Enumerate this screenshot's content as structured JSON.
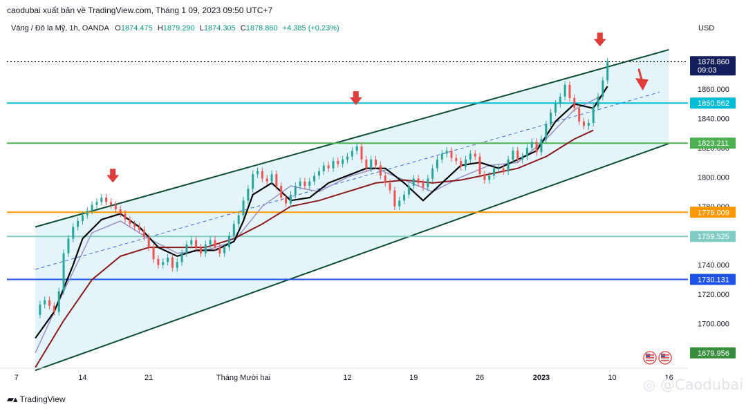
{
  "header": {
    "publisher": "caodubai xuất bản về TradingView.com, Tháng 1 09, 2023 09:50 UTC+7"
  },
  "ohlc": {
    "symbol": "Vàng / Đô la Mỹ, 1h, OANDA",
    "open_label": "O",
    "open": "1874.475",
    "high_label": "H",
    "high": "1879.290",
    "low_label": "L",
    "low": "1874.305",
    "close_label": "C",
    "close": "1878.860",
    "change": "+4.385 (+0.23%)"
  },
  "currency": "USD",
  "footer": {
    "brand": "TradingView"
  },
  "watermark": "@Caodubai",
  "chart_data": {
    "type": "line",
    "ylim": [
      1670,
      1895
    ],
    "y_ticks": [
      1700,
      1720,
      1740,
      1760,
      1780,
      1800,
      1820,
      1840,
      1860,
      1880
    ],
    "y_tick_labels": [
      "1700.000",
      "1720.000",
      "1740.000",
      "",
      "1780.000",
      "1800.000",
      "1820.000",
      "1840.000",
      "1860.000",
      ""
    ],
    "x_ticks": [
      {
        "label": "7",
        "t": 7
      },
      {
        "label": "14",
        "t": 14
      },
      {
        "label": "21",
        "t": 21
      },
      {
        "label": "Tháng Mười hai",
        "t": 31
      },
      {
        "label": "12",
        "t": 42
      },
      {
        "label": "19",
        "t": 49
      },
      {
        "label": "26",
        "t": 56
      },
      {
        "label": "2023",
        "t": 62.5
      },
      {
        "label": "10",
        "t": 70
      },
      {
        "label": "16",
        "t": 76
      }
    ],
    "price_series": {
      "name": "",
      "x": [
        9,
        9.5,
        10,
        10.5,
        11,
        11.5,
        12,
        12.5,
        13,
        13.5,
        14,
        14.5,
        15,
        15.5,
        16,
        16.5,
        17,
        17.5,
        18,
        18.5,
        19,
        19.5,
        20,
        20.5,
        21,
        21.5,
        22,
        22.5,
        23,
        23.5,
        24,
        24.5,
        25,
        25.5,
        26,
        26.5,
        27,
        27.5,
        28,
        28.5,
        29,
        29.5,
        30,
        30.5,
        31,
        31.5,
        32,
        32.5,
        33,
        33.5,
        34,
        34.5,
        35,
        35.5,
        36,
        36.5,
        37,
        37.5,
        38,
        38.5,
        39,
        39.5,
        40,
        40.5,
        41,
        41.5,
        42,
        42.5,
        43,
        43.5,
        44,
        44.5,
        45,
        45.5,
        46,
        46.5,
        47,
        47.5,
        48,
        48.5,
        49,
        49.5,
        50,
        50.5,
        51,
        51.5,
        52,
        52.5,
        53,
        53.5,
        54,
        54.5,
        55,
        55.5,
        56,
        56.5,
        57,
        57.5,
        58,
        58.5,
        59,
        59.5,
        60,
        60.5,
        61,
        61.5,
        62,
        62.5,
        63,
        63.5,
        64,
        64.5,
        65,
        65.5,
        66,
        66.5,
        67,
        67.5,
        68,
        68.5,
        69,
        69.5
      ],
      "values": [
        1706,
        1713,
        1716,
        1712,
        1708,
        1722,
        1748,
        1758,
        1766,
        1770,
        1774,
        1777,
        1781,
        1783,
        1786,
        1783,
        1781,
        1778,
        1775,
        1771,
        1768,
        1766,
        1764,
        1759,
        1752,
        1744,
        1740,
        1742,
        1745,
        1738,
        1742,
        1748,
        1754,
        1757,
        1752,
        1748,
        1754,
        1757,
        1752,
        1748,
        1752,
        1760,
        1768,
        1774,
        1784,
        1792,
        1802,
        1804,
        1799,
        1797,
        1802,
        1794,
        1786,
        1782,
        1788,
        1794,
        1797,
        1794,
        1797,
        1801,
        1804,
        1808,
        1806,
        1811,
        1809,
        1812,
        1814,
        1818,
        1821,
        1812,
        1806,
        1812,
        1808,
        1801,
        1796,
        1791,
        1780,
        1784,
        1788,
        1794,
        1799,
        1796,
        1793,
        1799,
        1806,
        1812,
        1816,
        1818,
        1813,
        1811,
        1807,
        1812,
        1816,
        1814,
        1802,
        1798,
        1801,
        1806,
        1806,
        1804,
        1812,
        1818,
        1812,
        1814,
        1820,
        1824,
        1817,
        1826,
        1836,
        1844,
        1850,
        1855,
        1863,
        1854,
        1847,
        1838,
        1835,
        1837,
        1848,
        1855,
        1866,
        1879
      ]
    },
    "price_axis_labels": [
      {
        "value": 1878.86,
        "label": "1878.860",
        "sublabel": "09:03",
        "color": "#131e5c"
      },
      {
        "value": 1850.562,
        "label": "1850.562",
        "color": "#00bcd4"
      },
      {
        "value": 1823.211,
        "label": "1823.211",
        "color": "#4caf50"
      },
      {
        "value": 1776.009,
        "label": "1776.009",
        "color": "#ff9800"
      },
      {
        "value": 1759.525,
        "label": "1759.525",
        "color": "#80cbc4"
      },
      {
        "value": 1730.131,
        "label": "1730.131",
        "color": "#1e53e5"
      },
      {
        "value": 1679.956,
        "label": "1679.956",
        "color": "#388e3c"
      }
    ],
    "horizontal_levels": [
      {
        "value": 1850.562,
        "color": "#00bcd4"
      },
      {
        "value": 1823.211,
        "color": "#4caf50"
      },
      {
        "value": 1776.009,
        "color": "#ff9800"
      },
      {
        "value": 1759.525,
        "color": "#80cbc4"
      },
      {
        "value": 1730.131,
        "color": "#1e53e5"
      }
    ],
    "last_price_line": {
      "value": 1878.86,
      "color": "#131722",
      "style": "dotted"
    },
    "channel": {
      "upper": [
        [
          9,
          1766
        ],
        [
          76,
          1887
        ]
      ],
      "lower": [
        [
          9,
          1668
        ],
        [
          76,
          1823
        ]
      ],
      "mid": [
        [
          9,
          1737
        ],
        [
          75,
          1858
        ]
      ],
      "fill": "#e3f4fb",
      "line_color": "#0d4d31"
    },
    "indicators": {
      "baseline": {
        "color": "#000000",
        "x": [
          9,
          11,
          13,
          14,
          16,
          18,
          20,
          22,
          24,
          26,
          28,
          30,
          31,
          32,
          34,
          36,
          38,
          40,
          42,
          44,
          46,
          48,
          50,
          52,
          54,
          56,
          58,
          60,
          62,
          64,
          66,
          68,
          69.5
        ],
        "values": [
          1690,
          1708,
          1740,
          1758,
          1771,
          1775,
          1766,
          1752,
          1746,
          1750,
          1750,
          1756,
          1770,
          1788,
          1796,
          1784,
          1786,
          1796,
          1801,
          1806,
          1806,
          1796,
          1784,
          1796,
          1808,
          1810,
          1806,
          1812,
          1818,
          1838,
          1850,
          1847,
          1862
        ]
      },
      "ma_slow": {
        "color": "#8b1a1a",
        "x": [
          9,
          12,
          15,
          18,
          21,
          24,
          27,
          30,
          33,
          36,
          39,
          42,
          45,
          48,
          51,
          54,
          57,
          60,
          63,
          66,
          68
        ],
        "values": [
          1670,
          1702,
          1730,
          1746,
          1752,
          1752,
          1752,
          1758,
          1768,
          1780,
          1784,
          1790,
          1796,
          1798,
          1796,
          1798,
          1802,
          1806,
          1814,
          1826,
          1832
        ]
      },
      "ma_fast": {
        "color": "#9c8fc7",
        "x": [
          9,
          12,
          15,
          18,
          21,
          24,
          27,
          30,
          33,
          36,
          39,
          42,
          45,
          48,
          51,
          54,
          57,
          60,
          63,
          66,
          69
        ],
        "values": [
          1680,
          1722,
          1762,
          1770,
          1758,
          1748,
          1750,
          1756,
          1780,
          1794,
          1790,
          1800,
          1806,
          1798,
          1790,
          1800,
          1808,
          1810,
          1826,
          1846,
          1856
        ]
      }
    },
    "annotations": [
      {
        "type": "down-arrow",
        "x": 17.2,
        "y": 1800,
        "color": "#e03c3c"
      },
      {
        "type": "down-arrow",
        "x": 42.9,
        "y": 1853,
        "color": "#e03c3c"
      },
      {
        "type": "down-arrow",
        "x": 68.7,
        "y": 1893,
        "color": "#e03c3c"
      },
      {
        "type": "long-down-arrow",
        "x": 72.8,
        "y_from": 1874,
        "y_to": 1861,
        "color": "#e03c3c"
      }
    ]
  }
}
